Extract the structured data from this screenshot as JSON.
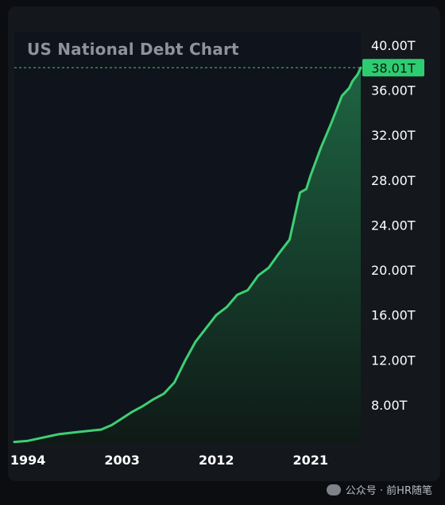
{
  "chart_data": {
    "type": "area",
    "title": "US National Debt Chart",
    "x_ticks": [
      "1994",
      "2003",
      "2012",
      "2021"
    ],
    "y_ticks": [
      "8.00T",
      "12.00T",
      "16.00T",
      "20.00T",
      "24.00T",
      "28.00T",
      "32.00T",
      "36.00T",
      "40.00T"
    ],
    "current_value_label": "38.01T",
    "xlim": [
      1992.7,
      2025.8
    ],
    "ylim": [
      4.6,
      41.2
    ],
    "series": [
      {
        "values": [
          [
            1992.7,
            4.7
          ],
          [
            1994,
            4.8
          ],
          [
            1995,
            5.0
          ],
          [
            1996,
            5.2
          ],
          [
            1997,
            5.4
          ],
          [
            1998,
            5.5
          ],
          [
            1999,
            5.6
          ],
          [
            2000,
            5.7
          ],
          [
            2001,
            5.8
          ],
          [
            2002,
            6.2
          ],
          [
            2003,
            6.8
          ],
          [
            2004,
            7.4
          ],
          [
            2005,
            7.9
          ],
          [
            2006,
            8.5
          ],
          [
            2007,
            9.0
          ],
          [
            2008,
            10.0
          ],
          [
            2009,
            11.9
          ],
          [
            2010,
            13.6
          ],
          [
            2011,
            14.8
          ],
          [
            2012,
            16.0
          ],
          [
            2013,
            16.7
          ],
          [
            2014,
            17.8
          ],
          [
            2015,
            18.2
          ],
          [
            2016,
            19.5
          ],
          [
            2017,
            20.2
          ],
          [
            2018,
            21.5
          ],
          [
            2019,
            22.7
          ],
          [
            2020,
            26.9
          ],
          [
            2020.6,
            27.2
          ],
          [
            2021,
            28.4
          ],
          [
            2022,
            30.9
          ],
          [
            2023,
            33.1
          ],
          [
            2024,
            35.5
          ],
          [
            2024.7,
            36.2
          ],
          [
            2025,
            36.8
          ],
          [
            2025.5,
            37.4
          ],
          [
            2025.8,
            38.0
          ]
        ]
      }
    ],
    "colors": {
      "line": "#3ecf73",
      "fill_top": "#1f6a45",
      "fill_bottom": "#0f1a16",
      "highlight_bg": "#2ecc71",
      "highlight_text": "#0b1a10",
      "axis_text": "#ffffff",
      "reference_line": "#4cc26f"
    },
    "grid": false,
    "legend": "none"
  },
  "watermark": {
    "text": "公众号 · 前HR随笔",
    "icon": "wechat-icon"
  }
}
